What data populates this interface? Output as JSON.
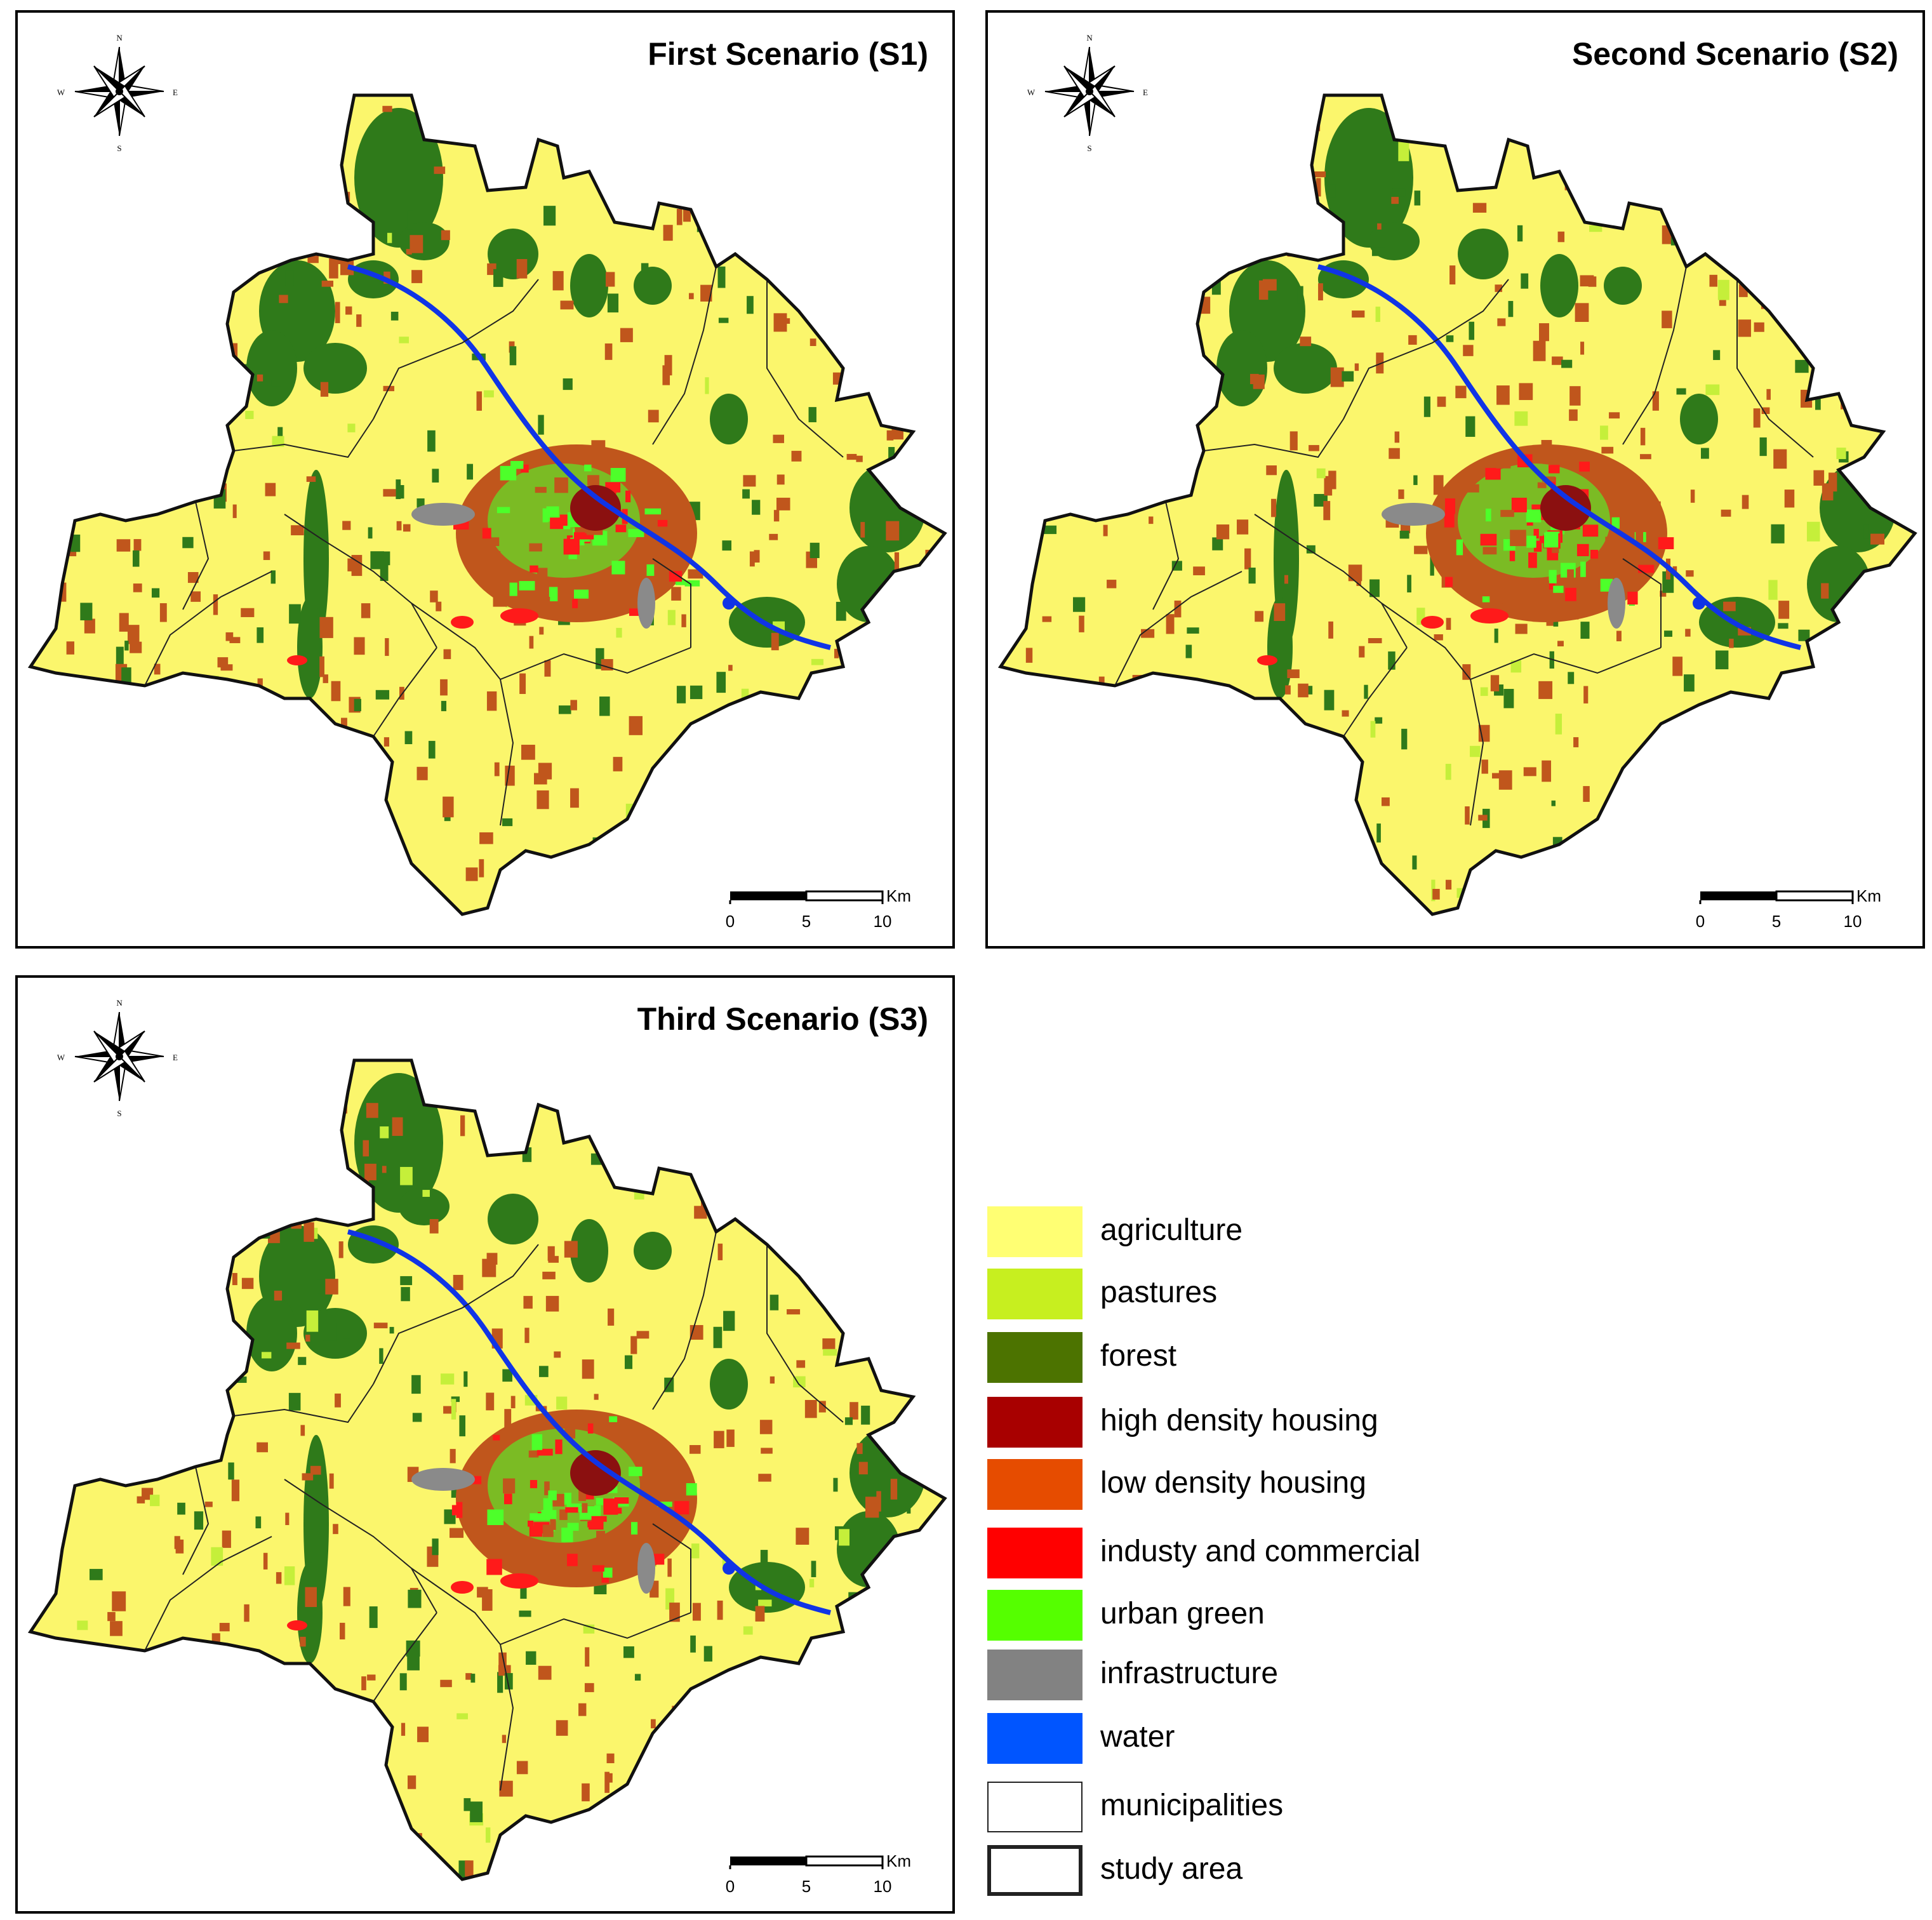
{
  "compass": {
    "n": "N",
    "s": "S",
    "e": "E",
    "w": "W"
  },
  "scale": {
    "unit": "Km",
    "ticks": [
      "0",
      "5",
      "10"
    ]
  },
  "panels": [
    {
      "title": "First Scenario (S1)"
    },
    {
      "title": "Second Scenario (S2)"
    },
    {
      "title": "Third Scenario (S3)"
    }
  ],
  "legend": {
    "items": [
      {
        "label": "agriculture",
        "color": "#ffff73"
      },
      {
        "label": "pastures",
        "color": "#c7ef1f"
      },
      {
        "label": "forest",
        "color": "#4c7300"
      },
      {
        "label": "high density housing",
        "color": "#a80000"
      },
      {
        "label": "low density housing",
        "color": "#e64c00"
      },
      {
        "label": "industy and commercial",
        "color": "#ff0000"
      },
      {
        "label": "urban green",
        "color": "#55ff00"
      },
      {
        "label": "infrastructure",
        "color": "#828282"
      },
      {
        "label": "water",
        "color": "#0055ff"
      },
      {
        "label": "municipalities",
        "color": "#ffffff"
      },
      {
        "label": "study area",
        "color": "#ffffff"
      }
    ]
  },
  "map_colors": {
    "agriculture": "#fbf66c",
    "pastures": "#c5ef3a",
    "forest": "#2f7a1a",
    "high_density": "#8b1010",
    "low_density": "#c0561c",
    "industry": "#ff1a1a",
    "urban_green": "#4dff2a",
    "infrastructure": "#8a8a8a",
    "water": "#1034e6"
  }
}
